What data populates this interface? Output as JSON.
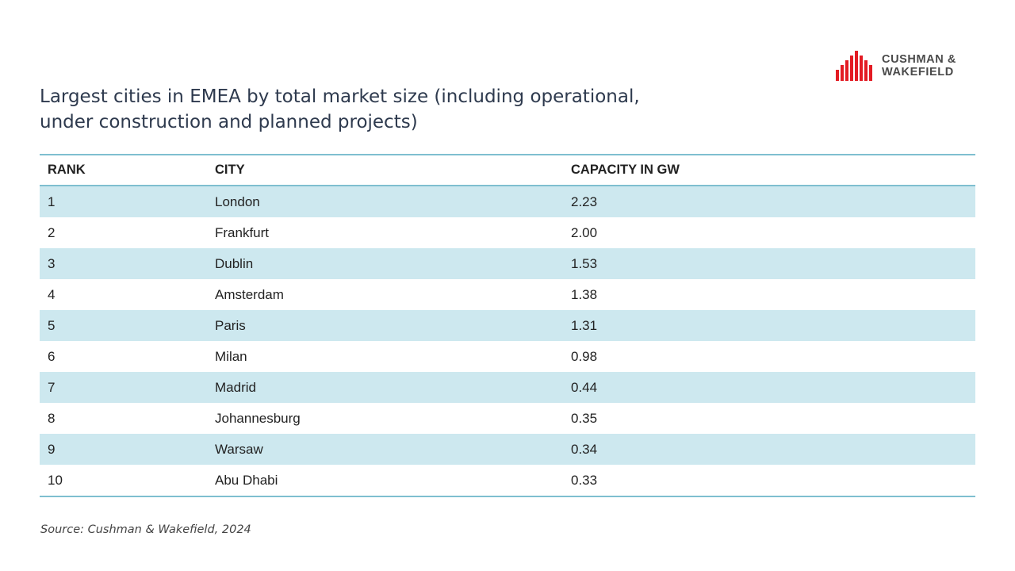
{
  "logo": {
    "line1": "CUSHMAN &",
    "line2": "WAKEFIELD",
    "brand_color": "#e31b23"
  },
  "title": {
    "line1": "Largest cities in EMEA by total market size (including operational,",
    "line2": "under construction and planned projects)"
  },
  "chart_data": {
    "type": "table",
    "title": "Largest cities in EMEA by total market size (including operational, under construction and planned projects)",
    "columns": [
      "RANK",
      "CITY",
      "CAPACITY IN GW"
    ],
    "rows": [
      [
        "1",
        "London",
        "2.23"
      ],
      [
        "2",
        "Frankfurt",
        "2.00"
      ],
      [
        "3",
        "Dublin",
        "1.53"
      ],
      [
        "4",
        "Amsterdam",
        "1.38"
      ],
      [
        "5",
        "Paris",
        "1.31"
      ],
      [
        "6",
        "Milan",
        "0.98"
      ],
      [
        "7",
        "Madrid",
        "0.44"
      ],
      [
        "8",
        "Johannesburg",
        "0.35"
      ],
      [
        "9",
        "Warsaw",
        "0.34"
      ],
      [
        "10",
        "Abu Dhabi",
        "0.33"
      ]
    ],
    "colors": {
      "rule": "#7fbfd0",
      "shade": "#cde8ef"
    }
  },
  "source": "Source: Cushman & Wakefield, 2024"
}
